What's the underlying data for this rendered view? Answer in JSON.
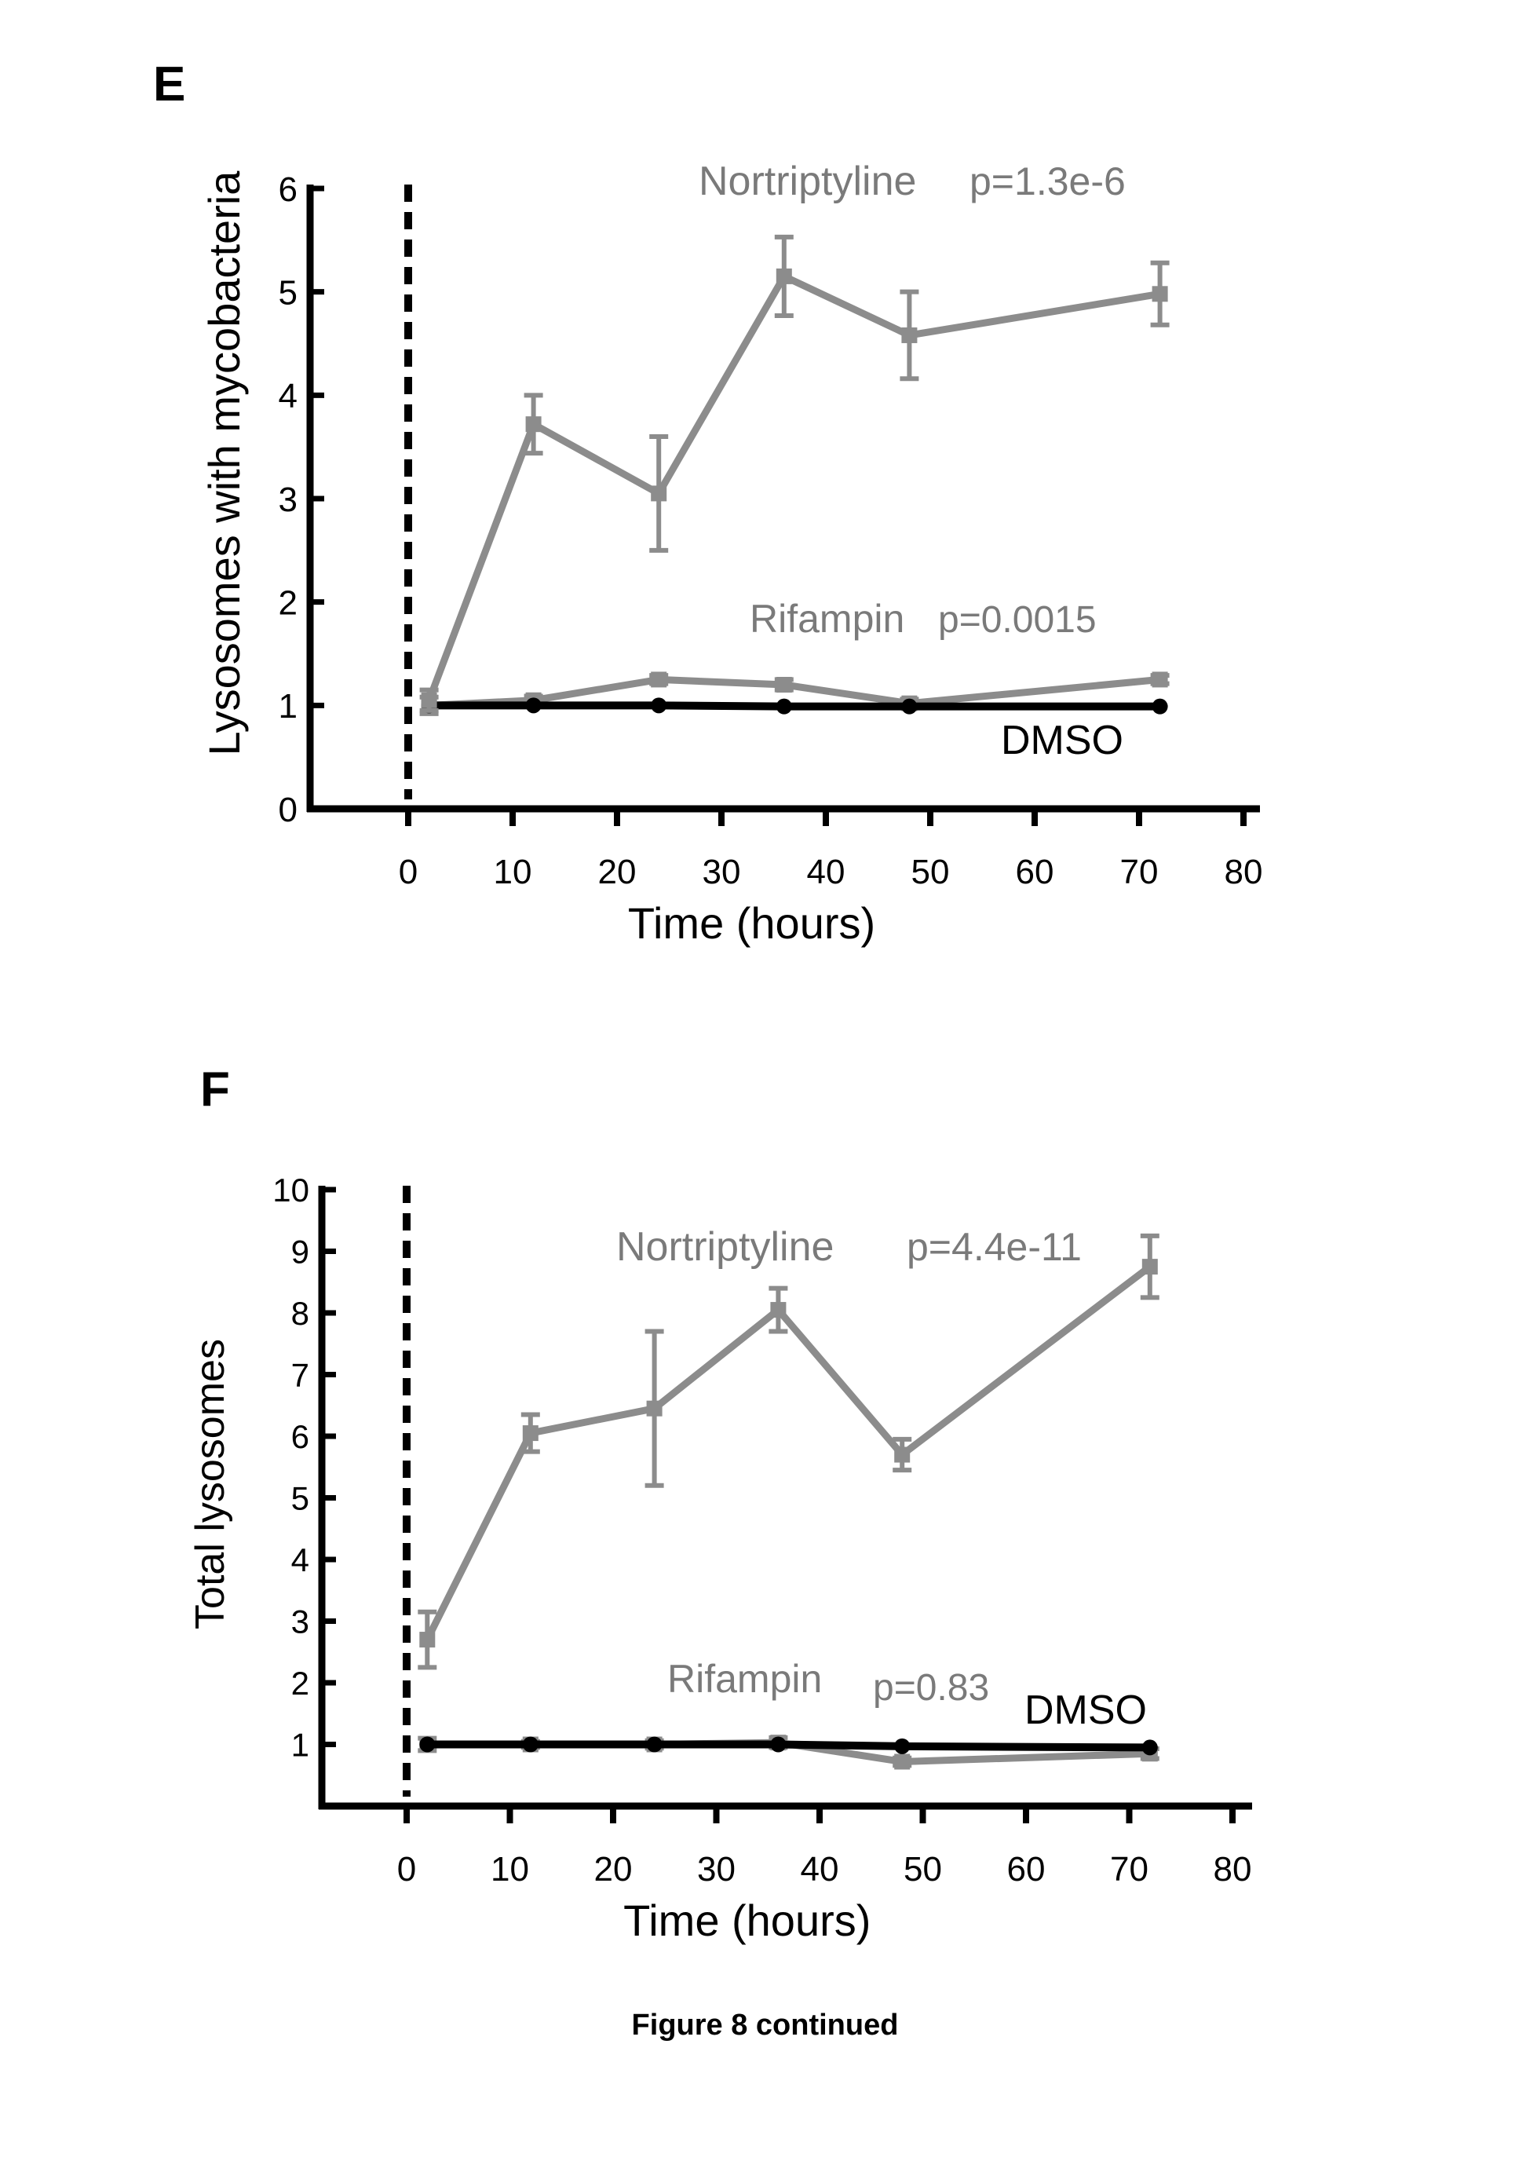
{
  "panels": {
    "e_letter": "E",
    "f_letter": "F"
  },
  "caption": "Figure 8 continued",
  "colors": {
    "treatment": "#8c8c8c",
    "dmso": "#000000",
    "axis": "#000000"
  },
  "chart_data": [
    {
      "type": "line",
      "panel": "E",
      "xlabel": "Time (hours)",
      "ylabel": "Lysosomes with mycobacteria",
      "xlim": [
        -8,
        82
      ],
      "ylim": [
        0,
        6
      ],
      "xticks": [
        0,
        10,
        20,
        30,
        40,
        50,
        60,
        70,
        80
      ],
      "yticks": [
        0,
        1,
        2,
        3,
        4,
        5,
        6
      ],
      "vline_x": 0,
      "grid": false,
      "series": [
        {
          "name": "Nortriptyline",
          "p_label": "p=1.3e-6",
          "x": [
            2,
            12,
            24,
            36,
            48,
            72
          ],
          "y": [
            1.05,
            3.72,
            3.05,
            5.15,
            4.58,
            4.98
          ],
          "err": [
            0.1,
            0.28,
            0.55,
            0.38,
            0.42,
            0.3
          ]
        },
        {
          "name": "Rifampin",
          "p_label": "p=0.0015",
          "x": [
            2,
            12,
            24,
            36,
            48,
            72
          ],
          "y": [
            1.0,
            1.05,
            1.25,
            1.2,
            1.02,
            1.25
          ],
          "err": [
            0.08,
            0.04,
            0.04,
            0.05,
            0.04,
            0.04
          ]
        },
        {
          "name": "DMSO",
          "x": [
            2,
            12,
            24,
            36,
            48,
            72
          ],
          "y": [
            1.0,
            1.0,
            1.0,
            0.99,
            0.99,
            0.99
          ],
          "err": [
            0,
            0,
            0,
            0,
            0,
            0
          ]
        }
      ]
    },
    {
      "type": "line",
      "panel": "F",
      "xlabel": "Time (hours)",
      "ylabel": "Total lysosomes",
      "xlim": [
        -8,
        82
      ],
      "ylim": [
        0,
        10
      ],
      "xticks": [
        0,
        10,
        20,
        30,
        40,
        50,
        60,
        70,
        80
      ],
      "yticks": [
        1,
        2,
        3,
        4,
        5,
        6,
        7,
        8,
        9,
        10
      ],
      "vline_x": 0,
      "grid": false,
      "series": [
        {
          "name": "Nortriptyline",
          "p_label": "p=4.4e-11",
          "x": [
            2,
            12,
            24,
            36,
            48,
            72
          ],
          "y": [
            2.7,
            6.05,
            6.45,
            8.05,
            5.7,
            8.75
          ],
          "err": [
            0.45,
            0.3,
            1.25,
            0.35,
            0.25,
            0.5
          ]
        },
        {
          "name": "Rifampin",
          "p_label": "p=0.83",
          "x": [
            2,
            12,
            24,
            36,
            48,
            72
          ],
          "y": [
            1.0,
            1.0,
            1.0,
            1.03,
            0.72,
            0.85
          ],
          "err": [
            0.1,
            0.05,
            0.06,
            0.08,
            0.06,
            0.08
          ]
        },
        {
          "name": "DMSO",
          "x": [
            2,
            12,
            24,
            36,
            48,
            72
          ],
          "y": [
            1.0,
            1.0,
            1.0,
            1.0,
            0.97,
            0.95
          ],
          "err": [
            0,
            0,
            0,
            0,
            0,
            0
          ]
        }
      ]
    }
  ]
}
